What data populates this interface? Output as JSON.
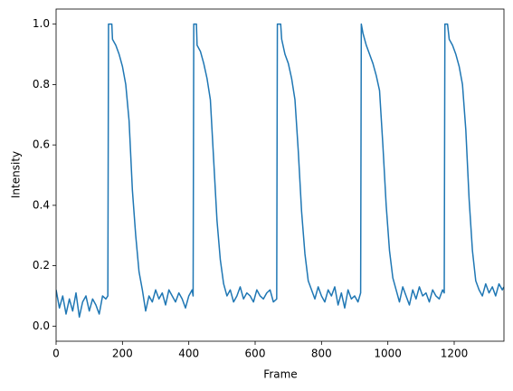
{
  "chart_data": {
    "type": "line",
    "xlabel": "Frame",
    "ylabel": "Intensity",
    "xlim": [
      0,
      1350
    ],
    "ylim": [
      -0.05,
      1.05
    ],
    "xticks": [
      0,
      200,
      400,
      600,
      800,
      1000,
      1200
    ],
    "yticks": [
      {
        "value": 0,
        "label": "0.0"
      },
      {
        "value": 0.2,
        "label": "0.2"
      },
      {
        "value": 0.4,
        "label": "0.4"
      },
      {
        "value": 0.6,
        "label": "0.6"
      },
      {
        "value": 0.8,
        "label": "0.8"
      },
      {
        "value": 1,
        "label": "1.0"
      }
    ],
    "grid": false,
    "x": [
      0,
      10,
      20,
      30,
      40,
      50,
      60,
      70,
      80,
      90,
      100,
      110,
      120,
      130,
      140,
      150,
      156,
      158,
      168,
      170,
      180,
      190,
      200,
      210,
      220,
      230,
      240,
      250,
      260,
      270,
      280,
      290,
      300,
      310,
      320,
      330,
      340,
      350,
      360,
      370,
      380,
      390,
      400,
      410,
      413,
      415,
      423,
      425,
      435,
      445,
      455,
      465,
      475,
      485,
      495,
      505,
      515,
      525,
      535,
      545,
      555,
      565,
      575,
      585,
      595,
      605,
      615,
      625,
      635,
      645,
      655,
      665,
      667,
      677,
      680,
      690,
      700,
      710,
      720,
      730,
      740,
      750,
      760,
      770,
      780,
      790,
      800,
      810,
      820,
      830,
      840,
      850,
      860,
      870,
      880,
      890,
      900,
      910,
      918,
      920,
      925,
      935,
      945,
      955,
      965,
      975,
      985,
      995,
      1005,
      1015,
      1025,
      1035,
      1045,
      1055,
      1065,
      1075,
      1085,
      1095,
      1105,
      1115,
      1125,
      1135,
      1145,
      1155,
      1165,
      1170,
      1172,
      1180,
      1185,
      1195,
      1205,
      1215,
      1225,
      1235,
      1245,
      1255,
      1265,
      1275,
      1285,
      1295,
      1305,
      1315,
      1325,
      1335,
      1345,
      1350
    ],
    "series": [
      {
        "color": "#1f77b4",
        "values": [
          0.12,
          0.06,
          0.1,
          0.04,
          0.09,
          0.05,
          0.11,
          0.03,
          0.08,
          0.1,
          0.05,
          0.09,
          0.07,
          0.04,
          0.1,
          0.09,
          0.1,
          1.0,
          1.0,
          0.95,
          0.93,
          0.9,
          0.86,
          0.8,
          0.68,
          0.45,
          0.3,
          0.18,
          0.12,
          0.05,
          0.1,
          0.08,
          0.12,
          0.09,
          0.11,
          0.07,
          0.12,
          0.1,
          0.08,
          0.11,
          0.09,
          0.06,
          0.1,
          0.12,
          0.1,
          1.0,
          1.0,
          0.93,
          0.91,
          0.87,
          0.82,
          0.75,
          0.55,
          0.35,
          0.22,
          0.14,
          0.1,
          0.12,
          0.08,
          0.1,
          0.13,
          0.09,
          0.11,
          0.1,
          0.08,
          0.12,
          0.1,
          0.09,
          0.11,
          0.12,
          0.08,
          0.09,
          1.0,
          1.0,
          0.95,
          0.9,
          0.87,
          0.82,
          0.75,
          0.58,
          0.38,
          0.24,
          0.15,
          0.12,
          0.09,
          0.13,
          0.1,
          0.08,
          0.12,
          0.1,
          0.13,
          0.07,
          0.11,
          0.06,
          0.12,
          0.09,
          0.1,
          0.08,
          0.11,
          1.0,
          0.97,
          0.93,
          0.9,
          0.87,
          0.83,
          0.78,
          0.6,
          0.4,
          0.25,
          0.16,
          0.12,
          0.08,
          0.13,
          0.1,
          0.07,
          0.12,
          0.09,
          0.13,
          0.1,
          0.11,
          0.08,
          0.12,
          0.1,
          0.09,
          0.12,
          0.11,
          1.0,
          1.0,
          0.95,
          0.93,
          0.9,
          0.86,
          0.8,
          0.65,
          0.42,
          0.25,
          0.15,
          0.12,
          0.1,
          0.14,
          0.11,
          0.13,
          0.1,
          0.14,
          0.12,
          0.13
        ]
      }
    ]
  }
}
